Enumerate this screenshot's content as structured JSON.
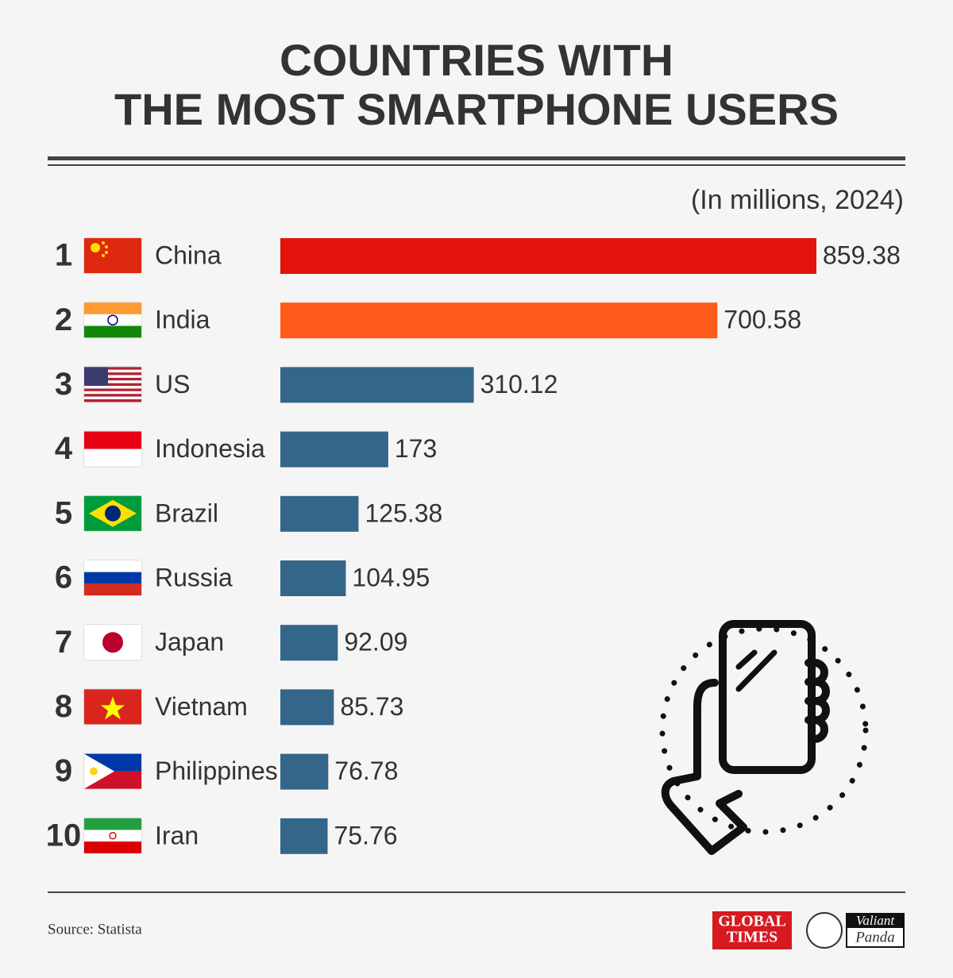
{
  "chart_data": {
    "type": "bar",
    "title": [
      "COUNTRIES WITH",
      "THE MOST SMARTPHONE USERS"
    ],
    "subtitle": "(In millions, 2024)",
    "ranks": [
      1,
      2,
      3,
      4,
      5,
      6,
      7,
      8,
      9,
      10
    ],
    "categories": [
      "China",
      "India",
      "US",
      "Indonesia",
      "Brazil",
      "Russia",
      "Japan",
      "Vietnam",
      "Philippines",
      "Iran"
    ],
    "values": [
      859.38,
      700.58,
      310.12,
      173,
      125.38,
      104.95,
      92.09,
      85.73,
      76.78,
      75.76
    ],
    "colors": [
      "#e3120b",
      "#ff5a1a",
      "#336688",
      "#336688",
      "#336688",
      "#336688",
      "#336688",
      "#336688",
      "#336688",
      "#336688"
    ],
    "source": "Source: Statista",
    "logos": {
      "global_times": [
        "GLOBAL",
        "TIMES"
      ],
      "valiant_panda": [
        "Valiant",
        "Panda"
      ]
    }
  }
}
